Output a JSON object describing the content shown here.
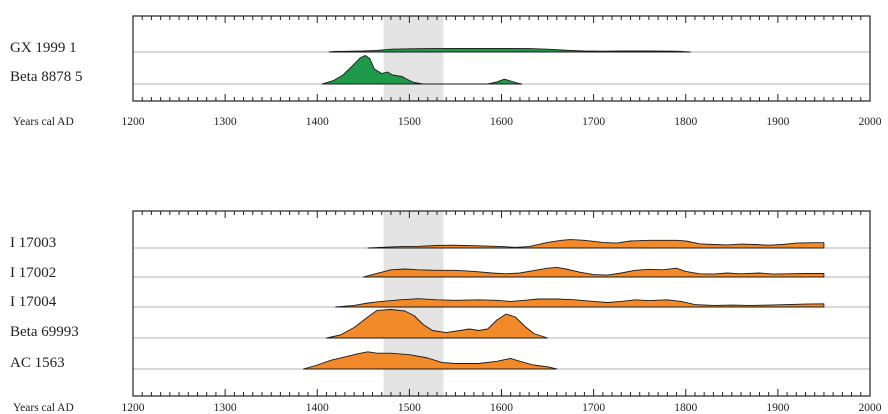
{
  "chart_data": [
    {
      "type": "area",
      "xlabel": "Years cal AD",
      "xlim": [
        1200,
        2000
      ],
      "x_ticks": [
        1200,
        1300,
        1400,
        1500,
        1600,
        1700,
        1800,
        1900,
        2000
      ],
      "highlight_range": [
        1472,
        1537
      ],
      "color": "#1e9a4a",
      "series": [
        {
          "name": "GX 1999 1",
          "points": [
            [
              1413,
              0
            ],
            [
              1418,
              0.06
            ],
            [
              1430,
              0.09
            ],
            [
              1450,
              0.12
            ],
            [
              1465,
              0.2
            ],
            [
              1480,
              0.35
            ],
            [
              1500,
              0.4
            ],
            [
              1520,
              0.42
            ],
            [
              1550,
              0.45
            ],
            [
              1600,
              0.45
            ],
            [
              1630,
              0.42
            ],
            [
              1650,
              0.35
            ],
            [
              1665,
              0.25
            ],
            [
              1675,
              0.2
            ],
            [
              1690,
              0.12
            ],
            [
              1710,
              0.1
            ],
            [
              1730,
              0.12
            ],
            [
              1760,
              0.12
            ],
            [
              1790,
              0.1
            ],
            [
              1805,
              0
            ]
          ]
        },
        {
          "name": "Beta 8878  5",
          "points": [
            [
              1405,
              0
            ],
            [
              1418,
              0.12
            ],
            [
              1428,
              0.3
            ],
            [
              1438,
              0.6
            ],
            [
              1447,
              0.88
            ],
            [
              1452,
              0.95
            ],
            [
              1457,
              0.85
            ],
            [
              1462,
              0.5
            ],
            [
              1470,
              0.35
            ],
            [
              1476,
              0.4
            ],
            [
              1482,
              0.3
            ],
            [
              1492,
              0.25
            ],
            [
              1498,
              0.15
            ],
            [
              1505,
              0.05
            ],
            [
              1515,
              0
            ],
            [
              1585,
              0
            ],
            [
              1595,
              0.07
            ],
            [
              1603,
              0.16
            ],
            [
              1610,
              0.1
            ],
            [
              1617,
              0.03
            ],
            [
              1622,
              0
            ]
          ]
        }
      ]
    },
    {
      "type": "area",
      "xlabel": "Years cal AD",
      "xlim": [
        1200,
        2000
      ],
      "x_ticks": [
        1200,
        1300,
        1400,
        1500,
        1600,
        1700,
        1800,
        1900,
        2000
      ],
      "highlight_range": [
        1472,
        1537
      ],
      "color": "#f28a2a",
      "series": [
        {
          "name": "I 17003",
          "points": [
            [
              1455,
              0
            ],
            [
              1470,
              0.05
            ],
            [
              1490,
              0.1
            ],
            [
              1510,
              0.12
            ],
            [
              1530,
              0.18
            ],
            [
              1545,
              0.2
            ],
            [
              1560,
              0.18
            ],
            [
              1580,
              0.15
            ],
            [
              1600,
              0.1
            ],
            [
              1615,
              0.05
            ],
            [
              1630,
              0.1
            ],
            [
              1650,
              0.4
            ],
            [
              1665,
              0.55
            ],
            [
              1675,
              0.6
            ],
            [
              1690,
              0.55
            ],
            [
              1710,
              0.4
            ],
            [
              1725,
              0.35
            ],
            [
              1740,
              0.5
            ],
            [
              1760,
              0.55
            ],
            [
              1790,
              0.55
            ],
            [
              1800,
              0.5
            ],
            [
              1815,
              0.3
            ],
            [
              1830,
              0.25
            ],
            [
              1845,
              0.22
            ],
            [
              1860,
              0.28
            ],
            [
              1875,
              0.25
            ],
            [
              1890,
              0.2
            ],
            [
              1905,
              0.25
            ],
            [
              1920,
              0.35
            ],
            [
              1940,
              0.38
            ],
            [
              1950,
              0.38
            ],
            [
              1950,
              0
            ]
          ]
        },
        {
          "name": "I 17002",
          "points": [
            [
              1450,
              0
            ],
            [
              1460,
              0.15
            ],
            [
              1470,
              0.3
            ],
            [
              1480,
              0.45
            ],
            [
              1495,
              0.5
            ],
            [
              1510,
              0.45
            ],
            [
              1530,
              0.42
            ],
            [
              1550,
              0.42
            ],
            [
              1570,
              0.35
            ],
            [
              1590,
              0.25
            ],
            [
              1605,
              0.2
            ],
            [
              1620,
              0.25
            ],
            [
              1635,
              0.4
            ],
            [
              1650,
              0.55
            ],
            [
              1660,
              0.6
            ],
            [
              1670,
              0.5
            ],
            [
              1685,
              0.3
            ],
            [
              1700,
              0.15
            ],
            [
              1715,
              0.12
            ],
            [
              1730,
              0.25
            ],
            [
              1745,
              0.42
            ],
            [
              1760,
              0.48
            ],
            [
              1775,
              0.45
            ],
            [
              1790,
              0.55
            ],
            [
              1800,
              0.35
            ],
            [
              1815,
              0.2
            ],
            [
              1830,
              0.18
            ],
            [
              1845,
              0.25
            ],
            [
              1860,
              0.2
            ],
            [
              1880,
              0.25
            ],
            [
              1895,
              0.18
            ],
            [
              1910,
              0.2
            ],
            [
              1930,
              0.22
            ],
            [
              1950,
              0.22
            ],
            [
              1950,
              0
            ]
          ]
        },
        {
          "name": "I 17004",
          "points": [
            [
              1420,
              0
            ],
            [
              1440,
              0.1
            ],
            [
              1455,
              0.25
            ],
            [
              1470,
              0.35
            ],
            [
              1490,
              0.45
            ],
            [
              1510,
              0.52
            ],
            [
              1530,
              0.45
            ],
            [
              1550,
              0.42
            ],
            [
              1575,
              0.45
            ],
            [
              1595,
              0.42
            ],
            [
              1610,
              0.35
            ],
            [
              1625,
              0.42
            ],
            [
              1640,
              0.5
            ],
            [
              1660,
              0.5
            ],
            [
              1680,
              0.45
            ],
            [
              1700,
              0.35
            ],
            [
              1715,
              0.28
            ],
            [
              1730,
              0.35
            ],
            [
              1745,
              0.45
            ],
            [
              1760,
              0.4
            ],
            [
              1780,
              0.45
            ],
            [
              1795,
              0.35
            ],
            [
              1810,
              0.15
            ],
            [
              1830,
              0.1
            ],
            [
              1850,
              0.12
            ],
            [
              1870,
              0.1
            ],
            [
              1890,
              0.12
            ],
            [
              1910,
              0.15
            ],
            [
              1930,
              0.18
            ],
            [
              1950,
              0.2
            ],
            [
              1950,
              0
            ]
          ]
        },
        {
          "name": "Beta 69993",
          "points": [
            [
              1410,
              0
            ],
            [
              1425,
              0.1
            ],
            [
              1440,
              0.35
            ],
            [
              1455,
              0.7
            ],
            [
              1465,
              0.92
            ],
            [
              1480,
              0.95
            ],
            [
              1495,
              0.9
            ],
            [
              1505,
              0.75
            ],
            [
              1515,
              0.45
            ],
            [
              1525,
              0.25
            ],
            [
              1540,
              0.18
            ],
            [
              1555,
              0.25
            ],
            [
              1565,
              0.3
            ],
            [
              1575,
              0.25
            ],
            [
              1585,
              0.3
            ],
            [
              1595,
              0.6
            ],
            [
              1605,
              0.8
            ],
            [
              1615,
              0.7
            ],
            [
              1625,
              0.4
            ],
            [
              1635,
              0.15
            ],
            [
              1650,
              0
            ]
          ]
        },
        {
          "name": "AC 1563",
          "points": [
            [
              1385,
              0
            ],
            [
              1400,
              0.18
            ],
            [
              1415,
              0.4
            ],
            [
              1430,
              0.55
            ],
            [
              1445,
              0.7
            ],
            [
              1455,
              0.78
            ],
            [
              1465,
              0.72
            ],
            [
              1480,
              0.72
            ],
            [
              1500,
              0.65
            ],
            [
              1520,
              0.5
            ],
            [
              1535,
              0.3
            ],
            [
              1550,
              0.25
            ],
            [
              1575,
              0.25
            ],
            [
              1595,
              0.35
            ],
            [
              1610,
              0.48
            ],
            [
              1620,
              0.35
            ],
            [
              1635,
              0.18
            ],
            [
              1650,
              0.1
            ],
            [
              1660,
              0
            ]
          ]
        }
      ]
    }
  ]
}
